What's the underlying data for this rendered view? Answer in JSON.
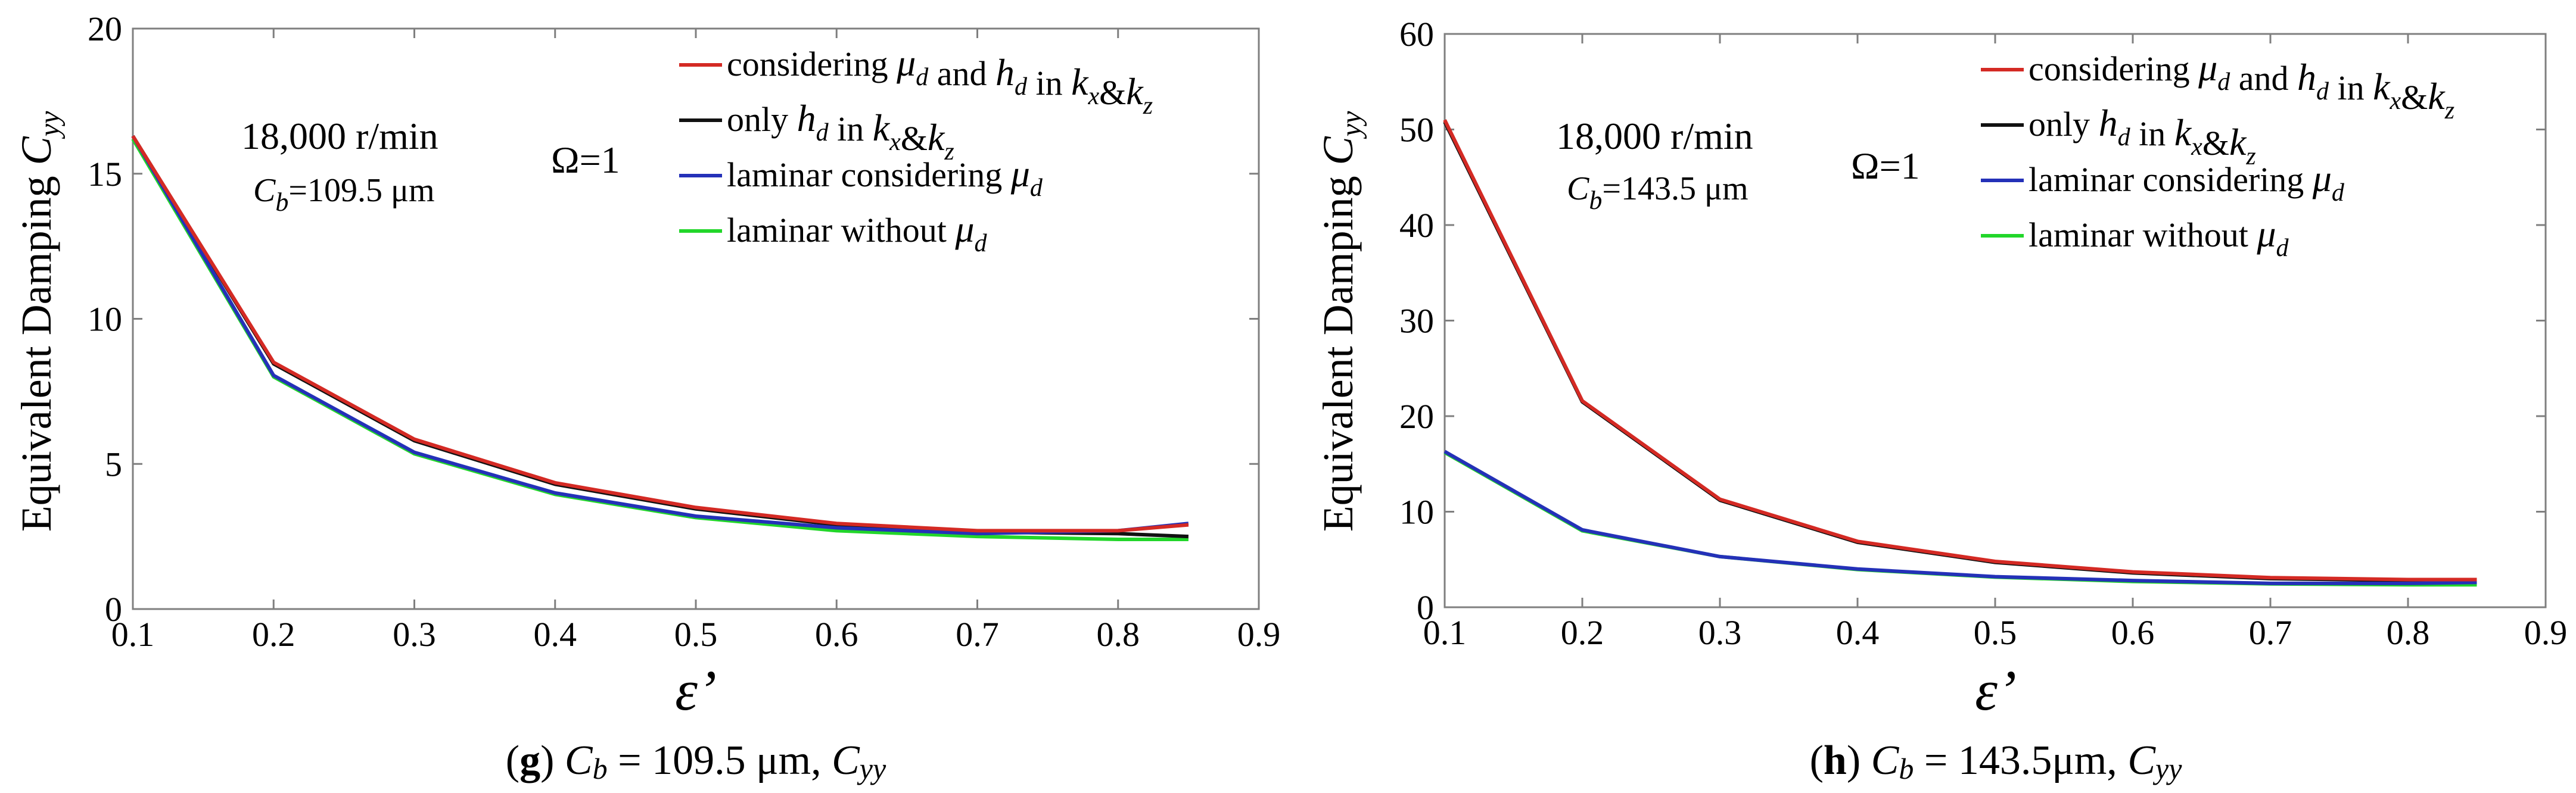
{
  "colors": {
    "red": "#d42a24",
    "black": "#111111",
    "blue": "#2431b8",
    "green": "#22d62a"
  },
  "chart_data": [
    {
      "type": "line",
      "panel": "g",
      "ylabel_prefix": "Equivalent Damping",
      "ylabel_var": "C",
      "ylabel_sub": "yy",
      "xlabel": "ε’",
      "xlim": [
        0.1,
        0.9
      ],
      "ylim": [
        0,
        20
      ],
      "xticks": [
        "0.1",
        "0.2",
        "0.3",
        "0.4",
        "0.5",
        "0.6",
        "0.7",
        "0.8",
        "0.9"
      ],
      "yticks": [
        "0",
        "5",
        "10",
        "15",
        "20"
      ],
      "annotation": {
        "speed": "18,000 r/min",
        "cb_var": "C",
        "cb_sub": "b",
        "cb_value": "=109.5 μm",
        "omega": "Ω=1"
      },
      "legend": [
        {
          "parts": [
            "considering ",
            "μ_d",
            " and ",
            "h_d",
            " in ",
            "k_x",
            "&",
            "k_z"
          ],
          "color": "red"
        },
        {
          "parts": [
            "only ",
            "h_d",
            " in ",
            "k_x",
            "&",
            "k_z"
          ],
          "color": "black"
        },
        {
          "parts": [
            "laminar considering ",
            "μ_d"
          ],
          "color": "blue"
        },
        {
          "parts": [
            "laminar without ",
            "μ_d"
          ],
          "color": "green"
        }
      ],
      "x": [
        0.1,
        0.2,
        0.3,
        0.4,
        0.5,
        0.6,
        0.7,
        0.8,
        0.85
      ],
      "series": [
        {
          "name": "considering μd and hd in kx&kz",
          "color": "red",
          "values": [
            16.3,
            8.5,
            5.85,
            4.35,
            3.5,
            2.95,
            2.7,
            2.7,
            2.9
          ]
        },
        {
          "name": "only hd in kx&kz",
          "color": "black",
          "values": [
            16.3,
            8.45,
            5.8,
            4.3,
            3.45,
            2.9,
            2.65,
            2.6,
            2.5
          ]
        },
        {
          "name": "laminar considering μd",
          "color": "blue",
          "values": [
            16.3,
            8.05,
            5.4,
            4.0,
            3.2,
            2.8,
            2.6,
            2.7,
            2.95
          ]
        },
        {
          "name": "laminar without μd",
          "color": "green",
          "values": [
            16.2,
            8.0,
            5.35,
            3.95,
            3.15,
            2.7,
            2.5,
            2.4,
            2.4
          ]
        }
      ],
      "caption": {
        "letter": "g",
        "var": "C",
        "sub": "b",
        "value": " = 109.5 μm, ",
        "var2": "C",
        "sub2": "yy"
      }
    },
    {
      "type": "line",
      "panel": "h",
      "ylabel_prefix": "Equivalent Damping",
      "ylabel_var": "C",
      "ylabel_sub": "yy",
      "xlabel": "ε’",
      "xlim": [
        0.1,
        0.9
      ],
      "ylim": [
        0,
        60
      ],
      "xticks": [
        "0.1",
        "0.2",
        "0.3",
        "0.4",
        "0.5",
        "0.6",
        "0.7",
        "0.8",
        "0.9"
      ],
      "yticks": [
        "0",
        "10",
        "20",
        "30",
        "40",
        "50",
        "60"
      ],
      "annotation": {
        "speed": "18,000 r/min",
        "cb_var": "C",
        "cb_sub": "b",
        "cb_value": "=143.5 μm",
        "omega": "Ω=1"
      },
      "legend": [
        {
          "parts": [
            "considering ",
            "μ_d",
            " and ",
            "h_d",
            " in ",
            "k_x",
            "&",
            "k_z"
          ],
          "color": "red"
        },
        {
          "parts": [
            "only ",
            "h_d",
            " in ",
            "k_x",
            "&",
            "k_z"
          ],
          "color": "black"
        },
        {
          "parts": [
            "laminar considering ",
            "μ_d"
          ],
          "color": "blue"
        },
        {
          "parts": [
            "laminar without ",
            "μ_d"
          ],
          "color": "green"
        }
      ],
      "x": [
        0.1,
        0.2,
        0.3,
        0.4,
        0.5,
        0.6,
        0.7,
        0.8,
        0.85
      ],
      "series": [
        {
          "name": "considering μd and hd in kx&kz",
          "color": "red",
          "values": [
            51.0,
            21.6,
            11.3,
            6.9,
            4.8,
            3.7,
            3.1,
            2.9,
            2.9
          ]
        },
        {
          "name": "only hd in kx&kz",
          "color": "black",
          "values": [
            50.8,
            21.5,
            11.2,
            6.8,
            4.7,
            3.6,
            3.0,
            2.8,
            2.8
          ]
        },
        {
          "name": "laminar considering μd",
          "color": "blue",
          "values": [
            16.3,
            8.1,
            5.3,
            4.0,
            3.2,
            2.8,
            2.5,
            2.5,
            2.6
          ]
        },
        {
          "name": "laminar without μd",
          "color": "green",
          "values": [
            16.2,
            8.0,
            5.3,
            3.95,
            3.15,
            2.7,
            2.45,
            2.35,
            2.35
          ]
        }
      ],
      "caption": {
        "letter": "h",
        "var": "C",
        "sub": "b",
        "value": " = 143.5μm, ",
        "var2": "C",
        "sub2": "yy"
      }
    }
  ]
}
